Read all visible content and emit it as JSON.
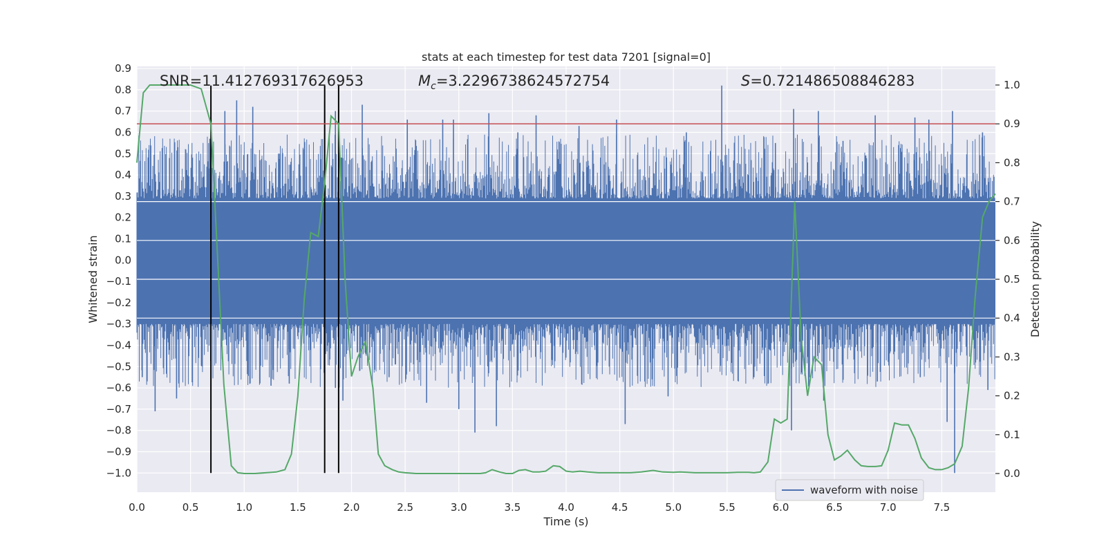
{
  "chart_data": {
    "type": "line",
    "title": "stats at each timestep for test data 7201 [signal=0]",
    "xlabel": "Time (s)",
    "ylabel_left": "Whitened strain",
    "ylabel_right": "Detection probability",
    "xlim": [
      0,
      8
    ],
    "ylim_left": [
      -1.09,
      0.91
    ],
    "ylim_right": [
      -0.048,
      1.048
    ],
    "x_ticks": [
      "0.0",
      "0.5",
      "1.0",
      "1.5",
      "2.0",
      "2.5",
      "3.0",
      "3.5",
      "4.0",
      "4.5",
      "5.0",
      "5.5",
      "6.0",
      "6.5",
      "7.0",
      "7.5"
    ],
    "y_left_ticks": [
      "0.9",
      "0.8",
      "0.7",
      "0.6",
      "0.5",
      "0.4",
      "0.3",
      "0.2",
      "0.1",
      "0.0",
      "−0.1",
      "−0.2",
      "−0.3",
      "−0.4",
      "−0.5",
      "−0.6",
      "−0.7",
      "−0.8",
      "−0.9",
      "−1.0"
    ],
    "y_right_ticks": [
      "0.0",
      "0.1",
      "0.2",
      "0.3",
      "0.4",
      "0.5",
      "0.6",
      "0.7",
      "0.8",
      "0.9",
      "1.0"
    ],
    "grid": true,
    "legend": {
      "placement": "lower-right",
      "entries": [
        "waveform with noise"
      ]
    },
    "annotations": {
      "snr_label": "SNR=11.412769317626953",
      "mc_symbol": "M",
      "mc_sub": "c",
      "mc_value": "=3.2296738624572754",
      "s_symbol": "S",
      "s_value": "=0.721486508846283"
    },
    "threshold": {
      "axis": "right",
      "value": 0.9,
      "color": "#c44e52"
    },
    "vertical_lines": [
      0.69,
      1.75,
      1.88
    ],
    "colors": {
      "waveform": "#4c72b0",
      "probability": "#55a868",
      "vlines": "#000000",
      "background": "#eaeaf2",
      "grid": "#ffffff"
    },
    "waveform": {
      "band_upper": 0.27,
      "band_lower": -0.28,
      "up_spikes": [
        [
          0.68,
          0.57
        ],
        [
          0.82,
          0.7
        ],
        [
          0.93,
          0.75
        ],
        [
          1.08,
          0.72
        ],
        [
          1.75,
          0.75
        ],
        [
          1.85,
          0.7
        ],
        [
          2.1,
          0.73
        ],
        [
          2.52,
          0.66
        ],
        [
          2.85,
          0.66
        ],
        [
          2.95,
          0.66
        ],
        [
          3.28,
          0.69
        ],
        [
          3.72,
          0.68
        ],
        [
          4.47,
          0.66
        ],
        [
          5.45,
          0.82
        ],
        [
          6.12,
          0.71
        ],
        [
          6.35,
          0.7
        ],
        [
          6.88,
          0.68
        ],
        [
          7.25,
          0.67
        ],
        [
          7.38,
          0.66
        ],
        [
          7.6,
          0.7
        ],
        [
          7.88,
          0.6
        ],
        [
          0.17,
          0.4
        ],
        [
          0.38,
          0.53
        ],
        [
          1.32,
          0.5
        ],
        [
          1.55,
          0.52
        ],
        [
          3.55,
          0.6
        ],
        [
          4.12,
          0.63
        ],
        [
          5.12,
          0.6
        ],
        [
          5.95,
          0.55
        ],
        [
          6.58,
          0.56
        ]
      ],
      "down_spikes": [
        [
          0.17,
          -0.71
        ],
        [
          0.37,
          -0.65
        ],
        [
          1.25,
          -0.59
        ],
        [
          1.42,
          -0.58
        ],
        [
          1.85,
          -0.6
        ],
        [
          1.92,
          -0.66
        ],
        [
          2.7,
          -0.67
        ],
        [
          3.0,
          -0.7
        ],
        [
          3.15,
          -0.81
        ],
        [
          3.35,
          -0.78
        ],
        [
          4.55,
          -0.77
        ],
        [
          6.1,
          -0.8
        ],
        [
          6.4,
          -0.66
        ],
        [
          7.55,
          -0.76
        ],
        [
          7.62,
          -1.0
        ],
        [
          7.93,
          -0.61
        ],
        [
          0.05,
          -0.55
        ],
        [
          2.35,
          -0.55
        ],
        [
          4.95,
          -0.64
        ],
        [
          5.75,
          -0.55
        ],
        [
          6.9,
          -0.57
        ],
        [
          7.3,
          -0.55
        ]
      ]
    },
    "detection_probability": {
      "x": [
        0.0,
        0.06,
        0.12,
        0.2,
        0.3,
        0.4,
        0.5,
        0.6,
        0.63,
        0.69,
        0.75,
        0.81,
        0.88,
        0.94,
        1.0,
        1.1,
        1.2,
        1.3,
        1.38,
        1.44,
        1.5,
        1.56,
        1.62,
        1.69,
        1.75,
        1.81,
        1.88,
        1.94,
        2.0,
        2.06,
        2.13,
        2.2,
        2.25,
        2.31,
        2.38,
        2.44,
        2.5,
        2.6,
        2.8,
        3.0,
        3.2,
        3.25,
        3.31,
        3.38,
        3.44,
        3.5,
        3.56,
        3.62,
        3.69,
        3.75,
        3.81,
        3.88,
        3.94,
        4.0,
        4.06,
        4.13,
        4.2,
        4.3,
        4.4,
        4.5,
        4.6,
        4.7,
        4.81,
        4.9,
        5.0,
        5.06,
        5.13,
        5.2,
        5.3,
        5.4,
        5.5,
        5.6,
        5.7,
        5.75,
        5.81,
        5.88,
        5.94,
        6.0,
        6.06,
        6.13,
        6.19,
        6.25,
        6.31,
        6.38,
        6.44,
        6.5,
        6.56,
        6.62,
        6.69,
        6.75,
        6.81,
        6.88,
        6.94,
        7.0,
        7.06,
        7.13,
        7.19,
        7.25,
        7.31,
        7.38,
        7.44,
        7.5,
        7.56,
        7.62,
        7.69,
        7.75,
        7.81,
        7.88,
        7.94,
        8.0
      ],
      "y": [
        0.8,
        0.98,
        1.0,
        1.0,
        1.0,
        1.0,
        1.0,
        0.99,
        0.96,
        0.9,
        0.57,
        0.23,
        0.02,
        0.002,
        0.0,
        0.0,
        0.002,
        0.004,
        0.01,
        0.05,
        0.2,
        0.45,
        0.62,
        0.61,
        0.75,
        0.92,
        0.9,
        0.5,
        0.25,
        0.3,
        0.34,
        0.22,
        0.05,
        0.02,
        0.01,
        0.004,
        0.002,
        0.0,
        0.0,
        0.0,
        0.0,
        0.002,
        0.01,
        0.004,
        0.0,
        0.0,
        0.008,
        0.01,
        0.004,
        0.004,
        0.006,
        0.02,
        0.018,
        0.006,
        0.004,
        0.006,
        0.004,
        0.002,
        0.002,
        0.002,
        0.002,
        0.004,
        0.008,
        0.004,
        0.003,
        0.004,
        0.003,
        0.002,
        0.002,
        0.002,
        0.002,
        0.003,
        0.003,
        0.002,
        0.004,
        0.03,
        0.14,
        0.13,
        0.14,
        0.7,
        0.35,
        0.2,
        0.3,
        0.28,
        0.1,
        0.035,
        0.045,
        0.06,
        0.035,
        0.02,
        0.018,
        0.018,
        0.02,
        0.06,
        0.13,
        0.125,
        0.125,
        0.09,
        0.04,
        0.015,
        0.01,
        0.01,
        0.015,
        0.025,
        0.07,
        0.22,
        0.45,
        0.66,
        0.7,
        0.72
      ]
    }
  }
}
